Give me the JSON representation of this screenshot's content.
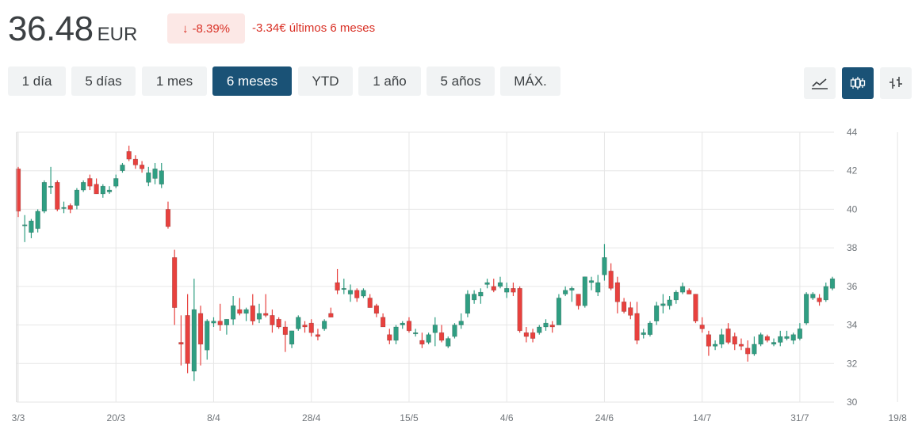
{
  "header": {
    "price": "36.48",
    "currency": "EUR",
    "change_arrow": "↓",
    "change_pct": "-8.39%",
    "change_abs": "-3.34€ últimos 6 meses"
  },
  "ranges": [
    {
      "label": "1 día",
      "active": false
    },
    {
      "label": "5 días",
      "active": false
    },
    {
      "label": "1 mes",
      "active": false
    },
    {
      "label": "6 meses",
      "active": true
    },
    {
      "label": "YTD",
      "active": false
    },
    {
      "label": "1 año",
      "active": false
    },
    {
      "label": "5 años",
      "active": false
    },
    {
      "label": "MÁX.",
      "active": false
    }
  ],
  "tools": [
    {
      "icon": "line-chart-icon",
      "active": false
    },
    {
      "icon": "candlestick-icon",
      "active": true
    },
    {
      "icon": "ohlc-bars-icon",
      "active": false
    }
  ],
  "colors": {
    "up": "#2f9e82",
    "down": "#e8413e",
    "accent": "#1a5276",
    "negative": "#d93025"
  },
  "chart_data": {
    "type": "candlestick",
    "ylim": [
      30,
      44
    ],
    "yticks": [
      "44",
      "42",
      "40",
      "38",
      "36",
      "34",
      "32",
      "30"
    ],
    "xtick_labels": [
      "3/3",
      "20/3",
      "8/4",
      "28/4",
      "15/5",
      "4/6",
      "24/6",
      "14/7",
      "31/7",
      "19/8"
    ],
    "xtick_index": [
      0,
      15,
      30,
      45,
      60,
      75,
      90,
      105,
      120,
      135
    ],
    "grid": true,
    "candles": [
      [
        42.1,
        42.2,
        39.6,
        39.9
      ],
      [
        39.2,
        39.7,
        38.3,
        39.2
      ],
      [
        38.8,
        39.5,
        38.5,
        39.4
      ],
      [
        39.0,
        40.0,
        38.8,
        39.9
      ],
      [
        39.9,
        41.5,
        39.8,
        41.4
      ],
      [
        41.2,
        42.2,
        40.8,
        41.2
      ],
      [
        41.4,
        41.5,
        39.9,
        40.0
      ],
      [
        40.1,
        40.4,
        39.8,
        40.1
      ],
      [
        40.2,
        40.3,
        39.8,
        40.0
      ],
      [
        40.2,
        41.1,
        40.0,
        41.0
      ],
      [
        41.0,
        41.5,
        40.9,
        41.4
      ],
      [
        41.6,
        41.8,
        41.0,
        41.2
      ],
      [
        41.3,
        41.6,
        40.8,
        40.8
      ],
      [
        40.8,
        41.3,
        40.6,
        41.2
      ],
      [
        40.9,
        41.2,
        40.8,
        41.0
      ],
      [
        41.2,
        41.8,
        41.1,
        41.6
      ],
      [
        42.0,
        42.4,
        41.9,
        42.3
      ],
      [
        43.0,
        43.3,
        42.5,
        42.6
      ],
      [
        42.6,
        42.8,
        42.1,
        42.3
      ],
      [
        42.3,
        42.5,
        41.9,
        42.1
      ],
      [
        41.4,
        42.2,
        41.2,
        41.9
      ],
      [
        41.6,
        42.4,
        41.3,
        42.1
      ],
      [
        41.3,
        42.4,
        41.1,
        42.0
      ],
      [
        40.0,
        40.4,
        39.0,
        39.1
      ],
      [
        37.5,
        37.9,
        34.0,
        34.9
      ],
      [
        33.1,
        34.5,
        31.9,
        33.0
      ],
      [
        34.5,
        35.6,
        31.5,
        32.0
      ],
      [
        31.6,
        36.4,
        31.1,
        34.8
      ],
      [
        34.6,
        35.0,
        31.9,
        33.0
      ],
      [
        32.7,
        34.3,
        32.2,
        34.2
      ],
      [
        34.1,
        34.4,
        33.9,
        34.2
      ],
      [
        34.2,
        35.1,
        33.7,
        34.0
      ],
      [
        34.0,
        34.3,
        33.5,
        34.3
      ],
      [
        34.3,
        35.5,
        34.0,
        35.0
      ],
      [
        34.8,
        35.4,
        34.5,
        34.6
      ],
      [
        34.6,
        34.9,
        34.2,
        34.8
      ],
      [
        35.0,
        35.6,
        34.0,
        34.2
      ],
      [
        34.3,
        35.1,
        34.1,
        34.6
      ],
      [
        34.6,
        35.6,
        34.4,
        34.5
      ],
      [
        34.5,
        34.8,
        33.6,
        34.0
      ],
      [
        34.3,
        34.4,
        33.8,
        33.9
      ],
      [
        33.9,
        34.2,
        32.6,
        33.5
      ],
      [
        33.0,
        33.7,
        32.8,
        33.7
      ],
      [
        33.8,
        34.5,
        33.7,
        34.4
      ],
      [
        34.0,
        34.2,
        33.6,
        33.9
      ],
      [
        34.1,
        34.3,
        33.4,
        33.6
      ],
      [
        33.5,
        33.8,
        33.2,
        33.4
      ],
      [
        33.8,
        34.3,
        33.7,
        34.2
      ],
      [
        34.6,
        34.9,
        34.4,
        34.4
      ],
      [
        36.2,
        36.9,
        35.6,
        35.8
      ],
      [
        35.9,
        36.4,
        35.6,
        35.9
      ],
      [
        35.6,
        36.1,
        35.2,
        35.8
      ],
      [
        35.8,
        35.9,
        35.2,
        35.4
      ],
      [
        35.5,
        35.9,
        35.4,
        35.8
      ],
      [
        35.4,
        35.6,
        34.9,
        34.9
      ],
      [
        35.0,
        35.1,
        34.4,
        34.6
      ],
      [
        34.4,
        34.6,
        33.9,
        33.9
      ],
      [
        33.5,
        33.8,
        33.0,
        33.2
      ],
      [
        33.2,
        34.0,
        33.0,
        33.9
      ],
      [
        34.0,
        34.2,
        33.8,
        34.1
      ],
      [
        34.2,
        34.4,
        33.6,
        33.7
      ],
      [
        33.6,
        33.8,
        33.4,
        33.6
      ],
      [
        33.2,
        33.6,
        32.8,
        33.0
      ],
      [
        33.1,
        33.6,
        33.0,
        33.5
      ],
      [
        33.6,
        34.4,
        32.9,
        34.0
      ],
      [
        33.6,
        34.0,
        33.1,
        33.2
      ],
      [
        32.9,
        33.4,
        32.8,
        33.3
      ],
      [
        33.4,
        34.1,
        33.3,
        34.0
      ],
      [
        34.0,
        34.6,
        33.8,
        34.2
      ],
      [
        34.6,
        35.8,
        34.4,
        35.6
      ],
      [
        35.3,
        35.8,
        35.1,
        35.6
      ],
      [
        35.5,
        35.9,
        35.1,
        35.7
      ],
      [
        36.1,
        36.4,
        35.9,
        36.2
      ],
      [
        36.0,
        36.4,
        35.7,
        35.8
      ],
      [
        36.0,
        36.5,
        35.9,
        36.2
      ],
      [
        35.7,
        36.2,
        35.4,
        35.9
      ],
      [
        35.9,
        36.2,
        35.5,
        35.7
      ],
      [
        35.9,
        36.0,
        33.6,
        33.7
      ],
      [
        33.6,
        33.9,
        33.1,
        33.4
      ],
      [
        33.6,
        33.8,
        33.1,
        33.3
      ],
      [
        33.6,
        34.0,
        33.5,
        33.9
      ],
      [
        33.9,
        34.3,
        33.7,
        34.1
      ],
      [
        34.0,
        34.2,
        33.6,
        33.9
      ],
      [
        34.0,
        35.6,
        34.0,
        35.4
      ],
      [
        35.6,
        36.0,
        35.5,
        35.8
      ],
      [
        35.8,
        36.0,
        35.2,
        35.9
      ],
      [
        35.6,
        35.6,
        34.8,
        35.0
      ],
      [
        35.0,
        36.5,
        34.9,
        36.5
      ],
      [
        36.2,
        36.5,
        35.8,
        36.3
      ],
      [
        35.7,
        36.6,
        35.5,
        36.2
      ],
      [
        36.6,
        38.2,
        36.3,
        37.5
      ],
      [
        36.8,
        37.2,
        35.8,
        35.9
      ],
      [
        36.2,
        36.5,
        34.6,
        35.2
      ],
      [
        35.2,
        35.4,
        34.6,
        34.7
      ],
      [
        34.9,
        35.2,
        34.3,
        34.5
      ],
      [
        34.6,
        35.2,
        33.0,
        33.2
      ],
      [
        33.5,
        33.8,
        33.3,
        33.6
      ],
      [
        33.5,
        34.2,
        33.4,
        34.1
      ],
      [
        34.2,
        35.2,
        34.0,
        35.0
      ],
      [
        35.0,
        35.6,
        34.6,
        35.1
      ],
      [
        35.0,
        35.5,
        34.8,
        35.3
      ],
      [
        35.3,
        35.8,
        35.1,
        35.7
      ],
      [
        35.7,
        36.2,
        35.6,
        36.0
      ],
      [
        35.8,
        35.9,
        35.6,
        35.6
      ],
      [
        35.6,
        35.6,
        34.1,
        34.2
      ],
      [
        34.0,
        34.4,
        33.6,
        33.8
      ],
      [
        33.5,
        33.7,
        32.4,
        32.9
      ],
      [
        32.9,
        33.2,
        32.7,
        33.0
      ],
      [
        33.0,
        33.8,
        32.8,
        33.5
      ],
      [
        33.8,
        34.1,
        33.0,
        33.1
      ],
      [
        33.4,
        33.6,
        32.7,
        33.0
      ],
      [
        33.0,
        33.3,
        32.7,
        32.9
      ],
      [
        32.8,
        33.2,
        32.1,
        32.5
      ],
      [
        32.5,
        33.4,
        32.4,
        33.0
      ],
      [
        33.0,
        33.6,
        32.9,
        33.5
      ],
      [
        33.4,
        33.5,
        33.1,
        33.2
      ],
      [
        33.0,
        33.3,
        32.9,
        33.1
      ],
      [
        33.1,
        33.7,
        32.9,
        33.4
      ],
      [
        33.3,
        33.7,
        33.2,
        33.4
      ],
      [
        33.2,
        33.6,
        33.0,
        33.5
      ],
      [
        33.3,
        34.1,
        33.2,
        33.8
      ],
      [
        34.1,
        35.7,
        34.0,
        35.6
      ],
      [
        35.4,
        35.7,
        35.3,
        35.6
      ],
      [
        35.4,
        35.6,
        35.0,
        35.2
      ],
      [
        35.3,
        36.2,
        35.2,
        36.0
      ],
      [
        35.9,
        36.5,
        35.8,
        36.4
      ]
    ]
  }
}
